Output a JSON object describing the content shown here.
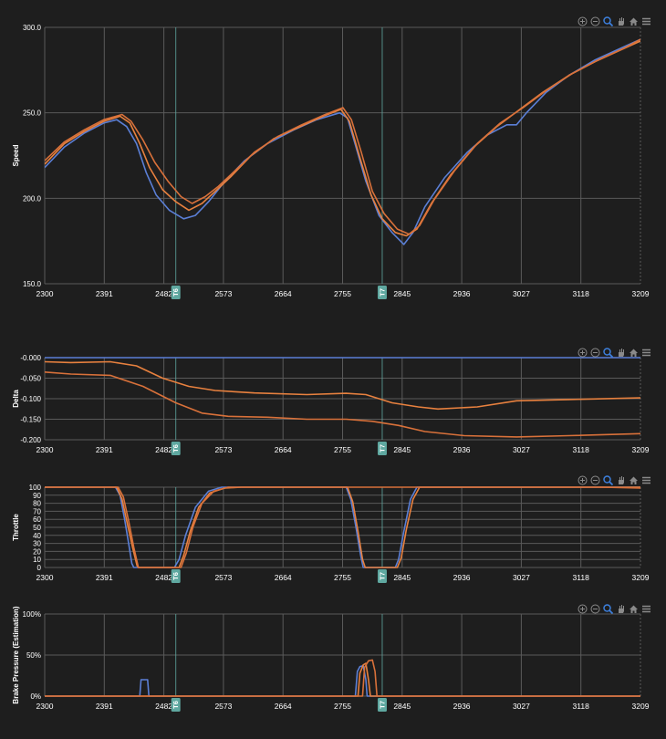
{
  "colors": {
    "blue": "#5b7fd6",
    "orange": "#e8813f",
    "orange2": "#d9713a",
    "grid": "#5a5a5a",
    "marker": "#5fa8a0",
    "text": "#ffffff"
  },
  "toolbar_icons": [
    "zoom-in-icon",
    "zoom-out-icon",
    "zoom-selection-icon",
    "pan-hand-icon",
    "reset-home-icon",
    "menu-icon"
  ],
  "markers": [
    {
      "label": "T6",
      "x": 2500
    },
    {
      "label": "T7",
      "x": 2815
    }
  ],
  "chart_data": [
    {
      "type": "line",
      "id": "speed",
      "title": "",
      "xlabel": "",
      "ylabel": "Speed",
      "xlim": [
        2300,
        3209
      ],
      "ylim": [
        150,
        300
      ],
      "x_ticks": [
        "2300",
        "2391",
        "2482",
        "2573",
        "2664",
        "2755",
        "2845",
        "2936",
        "3027",
        "3118",
        "3209"
      ],
      "y_ticks": [
        "150.0",
        "200.0",
        "250.0",
        "300.0"
      ],
      "grid": true,
      "series": [
        {
          "color": "blue",
          "points": [
            [
              2300,
              218
            ],
            [
              2330,
              230
            ],
            [
              2360,
              238
            ],
            [
              2390,
              244
            ],
            [
              2410,
              246
            ],
            [
              2425,
              242
            ],
            [
              2440,
              232
            ],
            [
              2455,
              215
            ],
            [
              2470,
              202
            ],
            [
              2490,
              193
            ],
            [
              2512,
              188
            ],
            [
              2530,
              190
            ],
            [
              2550,
              198
            ],
            [
              2575,
              210
            ],
            [
              2605,
              222
            ],
            [
              2640,
              232
            ],
            [
              2680,
              240
            ],
            [
              2715,
              246
            ],
            [
              2750,
              250
            ],
            [
              2762,
              247
            ],
            [
              2775,
              230
            ],
            [
              2790,
              210
            ],
            [
              2810,
              190
            ],
            [
              2830,
              180
            ],
            [
              2848,
              173
            ],
            [
              2862,
              180
            ],
            [
              2880,
              195
            ],
            [
              2910,
              212
            ],
            [
              2945,
              227
            ],
            [
              2975,
              237
            ],
            [
              3005,
              243
            ],
            [
              3020,
              243
            ],
            [
              3035,
              250
            ],
            [
              3065,
              262
            ],
            [
              3100,
              272
            ],
            [
              3140,
              281
            ],
            [
              3180,
              288
            ],
            [
              3209,
              293
            ]
          ]
        },
        {
          "color": "orange",
          "points": [
            [
              2300,
              220
            ],
            [
              2330,
              232
            ],
            [
              2360,
              239
            ],
            [
              2390,
              245
            ],
            [
              2415,
              248
            ],
            [
              2430,
              244
            ],
            [
              2445,
              232
            ],
            [
              2460,
              218
            ],
            [
              2480,
              205
            ],
            [
              2500,
              198
            ],
            [
              2520,
              193
            ],
            [
              2540,
              197
            ],
            [
              2560,
              204
            ],
            [
              2585,
              213
            ],
            [
              2615,
              225
            ],
            [
              2650,
              235
            ],
            [
              2690,
              242
            ],
            [
              2725,
              248
            ],
            [
              2752,
              252
            ],
            [
              2765,
              245
            ],
            [
              2780,
              225
            ],
            [
              2798,
              202
            ],
            [
              2815,
              188
            ],
            [
              2835,
              180
            ],
            [
              2852,
              178
            ],
            [
              2868,
              182
            ],
            [
              2890,
              197
            ],
            [
              2920,
              214
            ],
            [
              2955,
              230
            ],
            [
              2990,
              242
            ],
            [
              3025,
              252
            ],
            [
              3060,
              262
            ],
            [
              3100,
              272
            ],
            [
              3140,
              280
            ],
            [
              3180,
              287
            ],
            [
              3209,
              292
            ]
          ]
        },
        {
          "color": "orange2",
          "points": [
            [
              2300,
              222
            ],
            [
              2330,
              233
            ],
            [
              2360,
              240
            ],
            [
              2390,
              246
            ],
            [
              2418,
              249
            ],
            [
              2432,
              245
            ],
            [
              2450,
              234
            ],
            [
              2468,
              221
            ],
            [
              2488,
              210
            ],
            [
              2508,
              201
            ],
            [
              2525,
              197
            ],
            [
              2545,
              201
            ],
            [
              2565,
              207
            ],
            [
              2590,
              216
            ],
            [
              2620,
              227
            ],
            [
              2655,
              236
            ],
            [
              2692,
              243
            ],
            [
              2728,
              249
            ],
            [
              2755,
              253
            ],
            [
              2768,
              246
            ],
            [
              2783,
              227
            ],
            [
              2800,
              204
            ],
            [
              2818,
              191
            ],
            [
              2838,
              182
            ],
            [
              2856,
              179
            ],
            [
              2872,
              184
            ],
            [
              2894,
              199
            ],
            [
              2925,
              216
            ],
            [
              2960,
              232
            ],
            [
              2995,
              244
            ],
            [
              3030,
              253
            ],
            [
              3065,
              263
            ],
            [
              3105,
              273
            ],
            [
              3145,
              281
            ],
            [
              3185,
              288
            ],
            [
              3209,
              293
            ]
          ]
        }
      ]
    },
    {
      "type": "line",
      "id": "delta",
      "title": "",
      "xlabel": "",
      "ylabel": "Delta",
      "xlim": [
        2300,
        3209
      ],
      "ylim": [
        -0.2,
        0
      ],
      "x_ticks": [
        "2300",
        "2391",
        "2482",
        "2573",
        "2664",
        "2755",
        "2845",
        "2936",
        "3027",
        "3118",
        "3209"
      ],
      "y_ticks": [
        "-0.200",
        "-0.150",
        "-0.100",
        "-0.050",
        "-0.000"
      ],
      "grid": true,
      "series": [
        {
          "color": "blue",
          "points": [
            [
              2300,
              0
            ],
            [
              3209,
              0
            ]
          ]
        },
        {
          "color": "orange",
          "points": [
            [
              2300,
              -0.01
            ],
            [
              2340,
              -0.012
            ],
            [
              2400,
              -0.01
            ],
            [
              2440,
              -0.02
            ],
            [
              2480,
              -0.05
            ],
            [
              2520,
              -0.07
            ],
            [
              2560,
              -0.08
            ],
            [
              2620,
              -0.086
            ],
            [
              2700,
              -0.09
            ],
            [
              2760,
              -0.087
            ],
            [
              2790,
              -0.09
            ],
            [
              2830,
              -0.11
            ],
            [
              2870,
              -0.12
            ],
            [
              2900,
              -0.125
            ],
            [
              2960,
              -0.12
            ],
            [
              3020,
              -0.105
            ],
            [
              3100,
              -0.102
            ],
            [
              3209,
              -0.098
            ]
          ]
        },
        {
          "color": "orange2",
          "points": [
            [
              2300,
              -0.035
            ],
            [
              2340,
              -0.04
            ],
            [
              2400,
              -0.043
            ],
            [
              2450,
              -0.07
            ],
            [
              2500,
              -0.11
            ],
            [
              2540,
              -0.135
            ],
            [
              2580,
              -0.143
            ],
            [
              2640,
              -0.145
            ],
            [
              2700,
              -0.15
            ],
            [
              2760,
              -0.15
            ],
            [
              2800,
              -0.155
            ],
            [
              2840,
              -0.165
            ],
            [
              2880,
              -0.18
            ],
            [
              2940,
              -0.19
            ],
            [
              3020,
              -0.193
            ],
            [
              3100,
              -0.19
            ],
            [
              3209,
              -0.185
            ]
          ]
        }
      ]
    },
    {
      "type": "line",
      "id": "throttle",
      "title": "",
      "xlabel": "",
      "ylabel": "Throttle",
      "xlim": [
        2300,
        3209
      ],
      "ylim": [
        0,
        100
      ],
      "x_ticks": [
        "2300",
        "2391",
        "2482",
        "2573",
        "2664",
        "2755",
        "2845",
        "2936",
        "3027",
        "3118",
        "3209"
      ],
      "y_ticks": [
        "0",
        "10",
        "20",
        "30",
        "40",
        "50",
        "60",
        "70",
        "80",
        "90",
        "100"
      ],
      "grid": true,
      "series": [
        {
          "color": "blue",
          "points": [
            [
              2300,
              100
            ],
            [
              2408,
              100
            ],
            [
              2415,
              90
            ],
            [
              2422,
              60
            ],
            [
              2428,
              30
            ],
            [
              2433,
              5
            ],
            [
              2436,
              0
            ],
            [
              2498,
              0
            ],
            [
              2505,
              10
            ],
            [
              2515,
              40
            ],
            [
              2530,
              75
            ],
            [
              2550,
              95
            ],
            [
              2570,
              100
            ],
            [
              2760,
              100
            ],
            [
              2767,
              85
            ],
            [
              2775,
              50
            ],
            [
              2782,
              15
            ],
            [
              2786,
              0
            ],
            [
              2835,
              0
            ],
            [
              2840,
              10
            ],
            [
              2848,
              45
            ],
            [
              2858,
              85
            ],
            [
              2868,
              100
            ],
            [
              3209,
              100
            ]
          ]
        },
        {
          "color": "orange",
          "points": [
            [
              2300,
              100
            ],
            [
              2410,
              100
            ],
            [
              2418,
              85
            ],
            [
              2426,
              55
            ],
            [
              2434,
              25
            ],
            [
              2441,
              2
            ],
            [
              2443,
              0
            ],
            [
              2505,
              0
            ],
            [
              2512,
              15
            ],
            [
              2522,
              45
            ],
            [
              2535,
              75
            ],
            [
              2552,
              93
            ],
            [
              2575,
              99
            ],
            [
              2600,
              100
            ],
            [
              2762,
              100
            ],
            [
              2770,
              82
            ],
            [
              2778,
              45
            ],
            [
              2785,
              10
            ],
            [
              2789,
              0
            ],
            [
              2838,
              0
            ],
            [
              2844,
              12
            ],
            [
              2852,
              48
            ],
            [
              2862,
              85
            ],
            [
              2872,
              100
            ],
            [
              3209,
              100
            ]
          ]
        },
        {
          "color": "orange2",
          "points": [
            [
              2300,
              100
            ],
            [
              2412,
              100
            ],
            [
              2420,
              88
            ],
            [
              2428,
              58
            ],
            [
              2436,
              25
            ],
            [
              2443,
              0
            ],
            [
              2508,
              0
            ],
            [
              2516,
              18
            ],
            [
              2526,
              50
            ],
            [
              2540,
              80
            ],
            [
              2558,
              95
            ],
            [
              2580,
              100
            ],
            [
              3150,
              100
            ],
            [
              3209,
              99
            ]
          ]
        }
      ]
    },
    {
      "type": "line",
      "id": "brake",
      "title": "",
      "xlabel": "",
      "ylabel": "Brake Pressure (Estimation)",
      "xlim": [
        2300,
        3209
      ],
      "ylim": [
        0,
        100
      ],
      "x_ticks": [
        "2300",
        "2391",
        "2482",
        "2573",
        "2664",
        "2755",
        "2845",
        "2936",
        "3027",
        "3118",
        "3209"
      ],
      "y_ticks": [
        "0%",
        "50%",
        "100%"
      ],
      "grid": true,
      "series": [
        {
          "color": "blue",
          "points": [
            [
              2300,
              0
            ],
            [
              2445,
              0
            ],
            [
              2447,
              20
            ],
            [
              2457,
              20
            ],
            [
              2459,
              0
            ],
            [
              2774,
              0
            ],
            [
              2777,
              30
            ],
            [
              2781,
              36
            ],
            [
              2786,
              37
            ],
            [
              2790,
              20
            ],
            [
              2792,
              0
            ],
            [
              3209,
              0
            ]
          ]
        },
        {
          "color": "orange",
          "points": [
            [
              2300,
              0
            ],
            [
              2778,
              0
            ],
            [
              2781,
              28
            ],
            [
              2786,
              38
            ],
            [
              2790,
              40
            ],
            [
              2794,
              20
            ],
            [
              2797,
              0
            ],
            [
              3209,
              0
            ]
          ]
        },
        {
          "color": "orange2",
          "points": [
            [
              2300,
              0
            ],
            [
              2785,
              0
            ],
            [
              2788,
              35
            ],
            [
              2794,
              43
            ],
            [
              2800,
              44
            ],
            [
              2804,
              30
            ],
            [
              2807,
              0
            ],
            [
              3209,
              0
            ]
          ]
        }
      ]
    }
  ]
}
